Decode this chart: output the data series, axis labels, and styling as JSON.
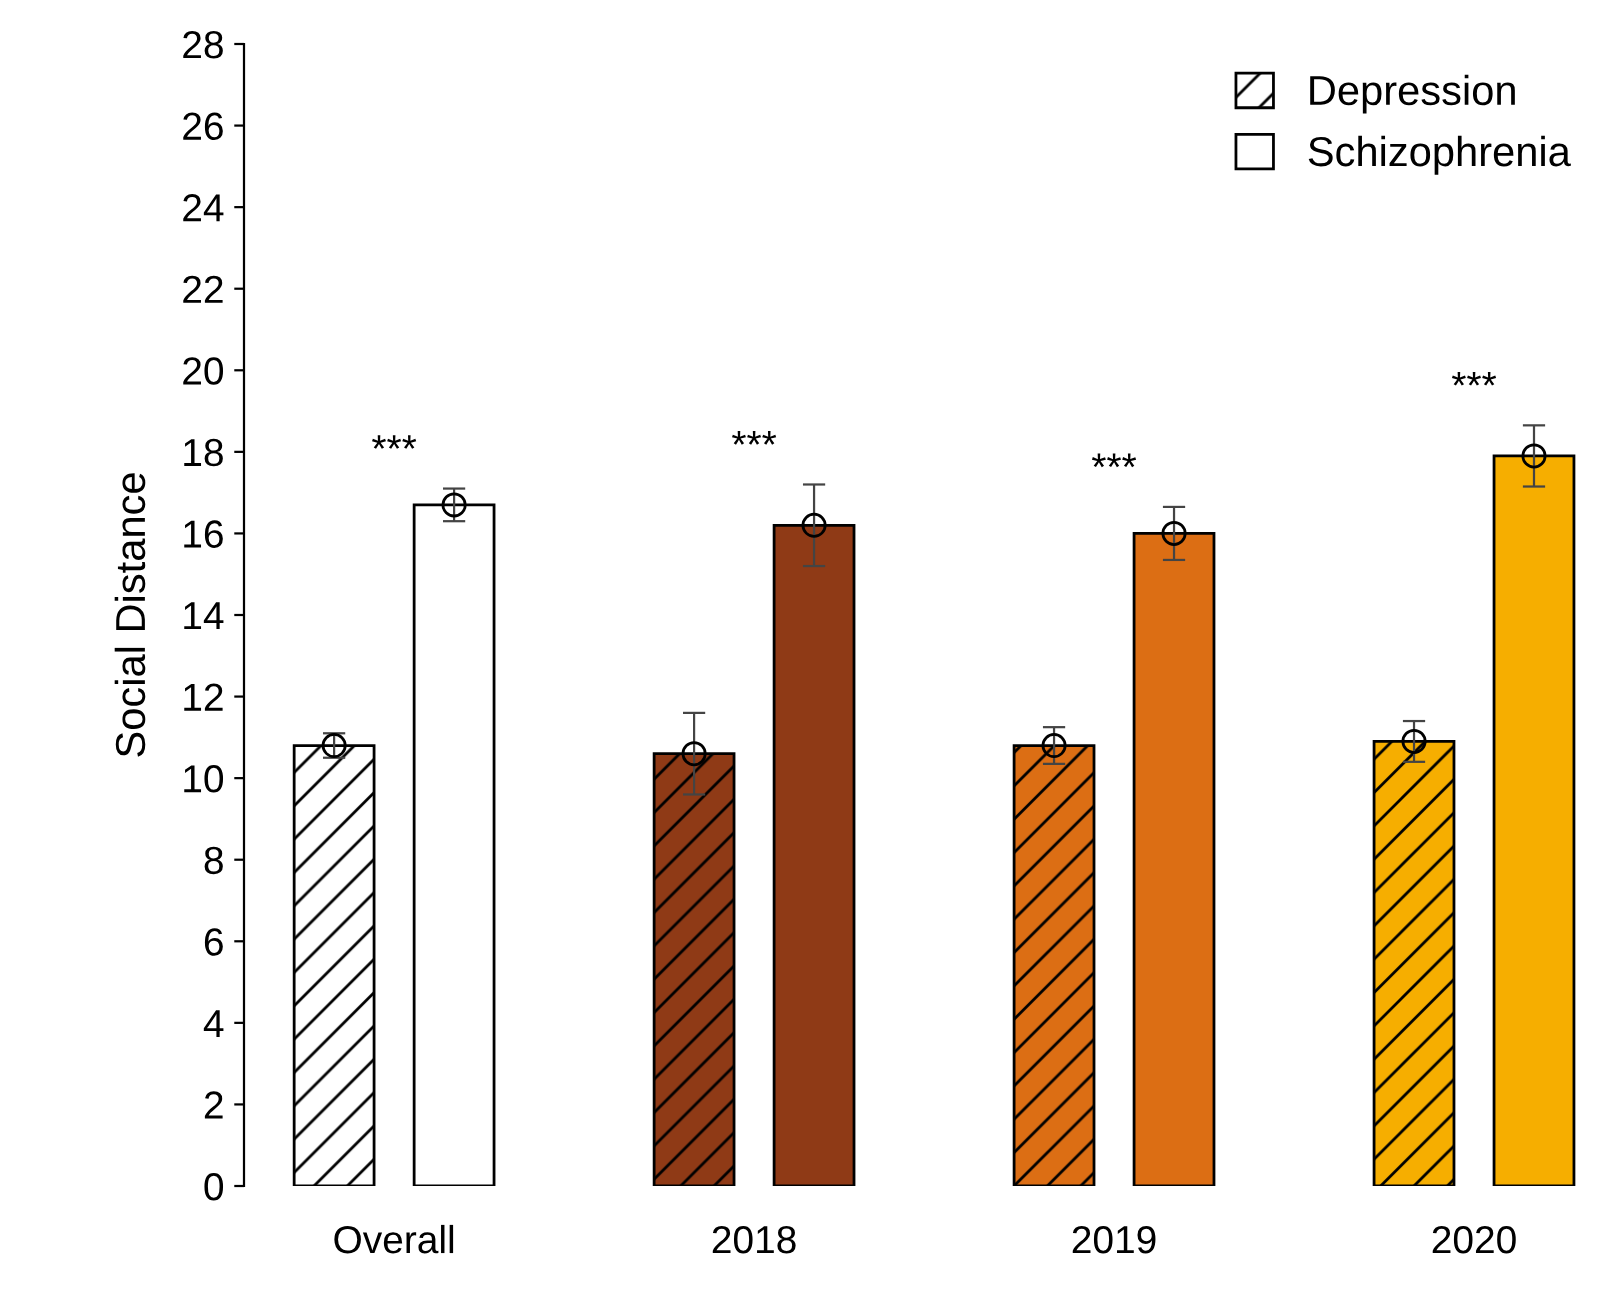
{
  "chart_data": {
    "type": "bar",
    "ylabel": "Social Distance",
    "categories": [
      "Overall",
      "2018",
      "2019",
      "2020"
    ],
    "series": [
      {
        "name": "Depression",
        "color": "#ffffff",
        "colors": [
          "#ffffff",
          "#8f3a16",
          "#dc6e14",
          "#f6ae00"
        ],
        "values": [
          10.8,
          10.6,
          10.8,
          10.9
        ],
        "errors": [
          0.3,
          1.0,
          0.45,
          0.5
        ]
      },
      {
        "name": "Schizophrenia",
        "color": "#ffffff",
        "colors": [
          "#ffffff",
          "#8f3a16",
          "#dc6e14",
          "#f6ae00"
        ],
        "values": [
          16.7,
          16.2,
          16.0,
          17.9
        ],
        "errors": [
          0.4,
          1.0,
          0.65,
          0.75
        ]
      },
      {
        "type": "scatter",
        "color": "#000000",
        "values": [
          10.8,
          10.6,
          10.8,
          10.9
        ]
      },
      {
        "type": "scatter",
        "color": "#000000",
        "values": [
          16.7,
          16.2,
          16.0,
          17.9
        ]
      }
    ],
    "ylim": [
      0,
      28
    ],
    "yticks": [
      0,
      2,
      4,
      6,
      8,
      10,
      12,
      14,
      16,
      18,
      20,
      22,
      24,
      26,
      28
    ],
    "grid": false,
    "legend": "top right",
    "marker": "circle",
    "annotations": [
      "***",
      "***",
      "***",
      "***"
    ]
  }
}
